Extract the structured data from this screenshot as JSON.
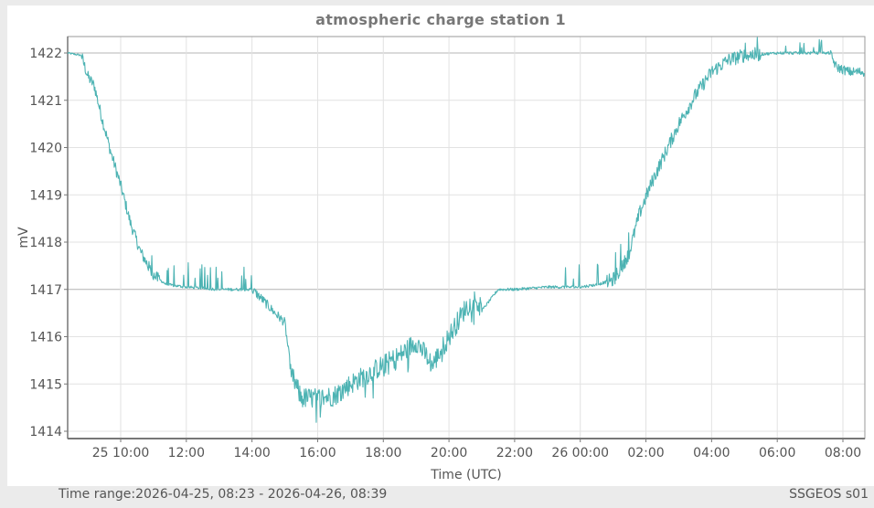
{
  "chart_data": {
    "type": "line",
    "title": "atmospheric charge station 1",
    "xlabel": "Time (UTC)",
    "ylabel": "mV",
    "ylim": [
      1413.8,
      1422.35
    ],
    "yticks": [
      1414,
      1415,
      1416,
      1417,
      1418,
      1419,
      1420,
      1421,
      1422
    ],
    "xlim_hours": [
      -1.617,
      22.65
    ],
    "xticks": [
      {
        "h": 0,
        "label": "25 10:00"
      },
      {
        "h": 2,
        "label": "12:00"
      },
      {
        "h": 4,
        "label": "14:00"
      },
      {
        "h": 6,
        "label": "16:00"
      },
      {
        "h": 8,
        "label": "18:00"
      },
      {
        "h": 10,
        "label": "20:00"
      },
      {
        "h": 12,
        "label": "22:00"
      },
      {
        "h": 14,
        "label": "26 00:00"
      },
      {
        "h": 16,
        "label": "02:00"
      },
      {
        "h": 18,
        "label": "04:00"
      },
      {
        "h": 20,
        "label": "06:00"
      },
      {
        "h": 22,
        "label": "08:00"
      }
    ],
    "reference_lines": [
      1422,
      1417
    ],
    "grid": true,
    "legend": "none",
    "series": [
      {
        "name": "atmospheric charge station 1",
        "color": "#4db3b3",
        "note": "hours relative to 2026-04-25 10:00 UTC; approximate trend values read from plot",
        "x": [
          -1.617,
          -1.2,
          -1.0,
          -0.8,
          -0.6,
          -0.3,
          0.0,
          0.3,
          0.6,
          1.0,
          1.4,
          2.0,
          3.0,
          4.0,
          4.3,
          4.7,
          5.0,
          5.2,
          5.5,
          6.0,
          6.5,
          7.0,
          7.5,
          8.0,
          8.5,
          9.0,
          9.5,
          10.0,
          10.5,
          10.8,
          11.0,
          11.5,
          12.0,
          13.0,
          14.0,
          14.5,
          15.0,
          15.3,
          15.5,
          15.8,
          16.2,
          16.6,
          17.0,
          17.5,
          18.0,
          18.5,
          19.0,
          20.0,
          21.0,
          21.6,
          21.8,
          22.2,
          22.65
        ],
        "values": [
          1422.0,
          1421.95,
          1421.5,
          1421.3,
          1420.7,
          1419.9,
          1419.2,
          1418.4,
          1417.8,
          1417.3,
          1417.1,
          1417.05,
          1417.0,
          1417.0,
          1416.8,
          1416.5,
          1416.3,
          1415.2,
          1414.7,
          1414.7,
          1414.75,
          1415.0,
          1415.2,
          1415.4,
          1415.6,
          1415.9,
          1415.4,
          1416.0,
          1416.6,
          1416.8,
          1416.55,
          1417.0,
          1417.0,
          1417.05,
          1417.05,
          1417.1,
          1417.2,
          1417.5,
          1417.8,
          1418.6,
          1419.3,
          1419.9,
          1420.5,
          1421.1,
          1421.6,
          1421.85,
          1421.95,
          1422.0,
          1422.0,
          1422.0,
          1421.7,
          1421.6,
          1421.6
        ]
      }
    ]
  },
  "footer": {
    "time_range_label": "Time range:",
    "time_range_value": "2026-04-25, 08:23 - 2026-04-26, 08:39",
    "station_id": "SSGEOS s01"
  }
}
